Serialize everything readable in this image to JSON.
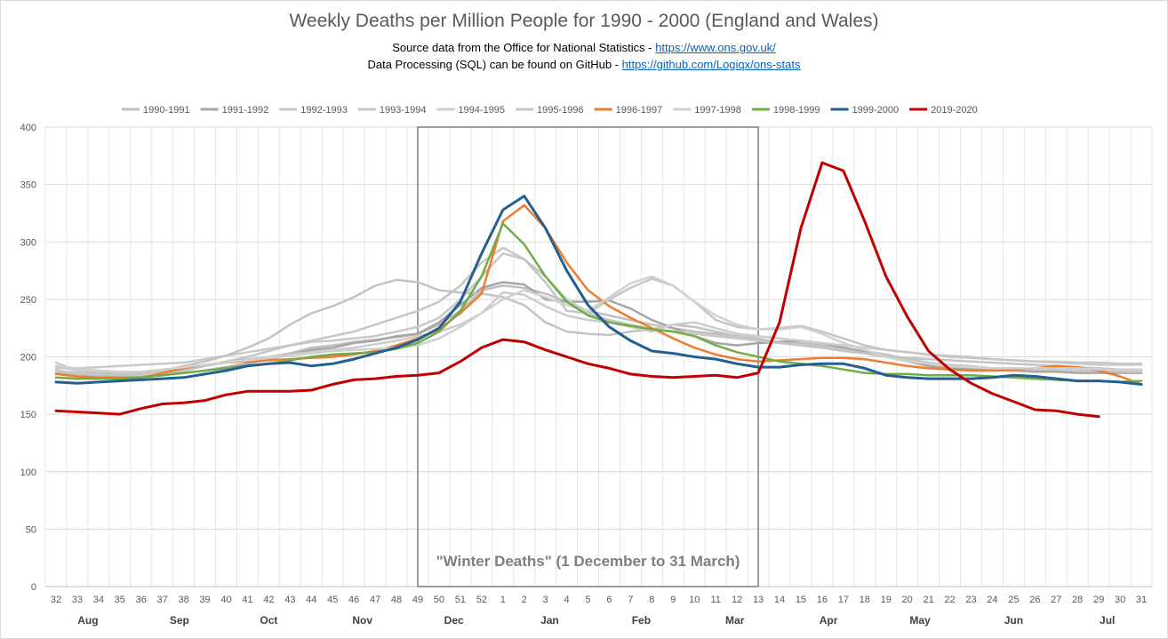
{
  "chart_data": {
    "type": "line",
    "title": "Weekly Deaths per Million People for 1990 - 2000 (England and Wales)",
    "subtitle_lines": [
      {
        "text": "Source data from the Office for National Statistics - ",
        "link": "https://www.ons.gov.uk/"
      },
      {
        "text": "Data Processing (SQL) can be found on GitHub - ",
        "link": "https://github.com/Logiqx/ons-stats"
      }
    ],
    "ylim": [
      0,
      400
    ],
    "y_ticks": [
      0,
      50,
      100,
      150,
      200,
      250,
      300,
      350,
      400
    ],
    "x": [
      32,
      33,
      34,
      35,
      36,
      37,
      38,
      39,
      40,
      41,
      42,
      43,
      44,
      45,
      46,
      47,
      48,
      49,
      50,
      51,
      52,
      1,
      2,
      3,
      4,
      5,
      6,
      7,
      8,
      9,
      10,
      11,
      12,
      13,
      14,
      15,
      16,
      17,
      18,
      19,
      20,
      21,
      22,
      23,
      24,
      25,
      26,
      27,
      28,
      29,
      30,
      31
    ],
    "months": [
      {
        "label": "Aug",
        "at": 33.5
      },
      {
        "label": "Sep",
        "at": 37.8
      },
      {
        "label": "Oct",
        "at": 42
      },
      {
        "label": "Nov",
        "at": 46.4
      },
      {
        "label": "Dec",
        "at": 50.7
      },
      {
        "label": "Jan",
        "at": 55.2
      },
      {
        "label": "Feb",
        "at": 59.5
      },
      {
        "label": "Mar",
        "at": 63.9
      },
      {
        "label": "Apr",
        "at": 68.3
      },
      {
        "label": "May",
        "at": 72.6
      },
      {
        "label": "Jun",
        "at": 77
      },
      {
        "label": "Jul",
        "at": 81.4
      }
    ],
    "winter_box": {
      "from_index": 17,
      "to_index": 33,
      "label": "\"Winter Deaths\" (1 December to 31 March)"
    },
    "legend_position": "top",
    "grid": true,
    "series": [
      {
        "name": "1990-1991",
        "color": "#c0c0c0",
        "values": [
          192,
          188,
          186,
          186,
          185,
          188,
          191,
          193,
          195,
          197,
          200,
          203,
          208,
          210,
          213,
          215,
          217,
          220,
          228,
          240,
          258,
          262,
          260,
          255,
          248,
          240,
          236,
          232,
          228,
          225,
          222,
          220,
          218,
          215,
          213,
          212,
          210,
          208,
          205,
          202,
          198,
          195,
          193,
          190,
          189,
          188,
          189,
          190,
          189,
          188,
          188,
          188
        ]
      },
      {
        "name": "1991-1992",
        "color": "#a6a6a6",
        "values": [
          186,
          184,
          183,
          182,
          182,
          184,
          186,
          188,
          191,
          194,
          198,
          202,
          206,
          208,
          212,
          214,
          218,
          220,
          230,
          245,
          260,
          265,
          263,
          250,
          248,
          248,
          249,
          242,
          232,
          225,
          218,
          212,
          210,
          212,
          213,
          214,
          212,
          208,
          204,
          200,
          196,
          192,
          190,
          189,
          188,
          188,
          187,
          187,
          186,
          186,
          186,
          186
        ]
      },
      {
        "name": "1992-1993",
        "color": "#c8c8c8",
        "values": [
          190,
          190,
          191,
          192,
          193,
          194,
          195,
          198,
          201,
          204,
          207,
          210,
          213,
          214,
          216,
          218,
          222,
          226,
          234,
          250,
          270,
          290,
          285,
          270,
          250,
          238,
          232,
          228,
          224,
          222,
          220,
          218,
          216,
          214,
          212,
          210,
          208,
          206,
          203,
          200,
          197,
          195,
          193,
          192,
          190,
          190,
          189,
          189,
          188,
          188,
          187,
          187
        ]
      },
      {
        "name": "1993-1994",
        "color": "#c3c3c3",
        "values": [
          186,
          185,
          184,
          184,
          185,
          188,
          192,
          196,
          201,
          208,
          216,
          228,
          238,
          244,
          252,
          262,
          267,
          265,
          258,
          256,
          255,
          252,
          245,
          230,
          222,
          220,
          219,
          222,
          224,
          228,
          226,
          222,
          218,
          216,
          212,
          210,
          208,
          205,
          203,
          201,
          199,
          198,
          197,
          196,
          195,
          194,
          193,
          192,
          191,
          190,
          189,
          189
        ]
      },
      {
        "name": "1994-1995",
        "color": "#cccccc",
        "values": [
          195,
          188,
          184,
          182,
          182,
          185,
          188,
          192,
          195,
          198,
          200,
          202,
          204,
          206,
          208,
          211,
          214,
          218,
          222,
          228,
          238,
          256,
          254,
          244,
          236,
          232,
          230,
          226,
          222,
          228,
          230,
          225,
          220,
          218,
          216,
          214,
          212,
          210,
          208,
          206,
          204,
          202,
          201,
          200,
          198,
          197,
          196,
          195,
          194,
          193,
          193,
          193
        ]
      },
      {
        "name": "1995-1996",
        "color": "#c6c6c6",
        "values": [
          188,
          186,
          184,
          183,
          183,
          185,
          188,
          192,
          196,
          200,
          205,
          210,
          214,
          218,
          222,
          228,
          234,
          240,
          248,
          262,
          282,
          295,
          285,
          265,
          240,
          238,
          250,
          260,
          268,
          262,
          248,
          232,
          226,
          224,
          225,
          227,
          222,
          216,
          210,
          206,
          204,
          202,
          200,
          199,
          198,
          197,
          196,
          196,
          195,
          195,
          194,
          194
        ]
      },
      {
        "name": "1996-1997",
        "color": "#ed7d31",
        "values": [
          185,
          183,
          182,
          182,
          182,
          186,
          190,
          193,
          195,
          196,
          197,
          198,
          199,
          200,
          202,
          205,
          210,
          216,
          224,
          238,
          255,
          318,
          332,
          312,
          282,
          258,
          244,
          234,
          225,
          216,
          208,
          202,
          198,
          196,
          197,
          198,
          199,
          199,
          198,
          195,
          192,
          190,
          189,
          188,
          188,
          189,
          190,
          192,
          191,
          188,
          183,
          176
        ]
      },
      {
        "name": "1997-1998",
        "color": "#d0d0d0",
        "values": [
          192,
          190,
          188,
          187,
          187,
          189,
          191,
          193,
          195,
          197,
          199,
          201,
          203,
          205,
          206,
          207,
          208,
          210,
          216,
          226,
          238,
          250,
          258,
          252,
          245,
          240,
          252,
          264,
          270,
          262,
          248,
          236,
          228,
          224,
          224,
          226,
          220,
          212,
          206,
          200,
          196,
          194,
          192,
          191,
          190,
          190,
          190,
          190,
          190,
          189,
          189,
          189
        ]
      },
      {
        "name": "1998-1999",
        "color": "#70ad47",
        "values": [
          182,
          181,
          181,
          181,
          182,
          184,
          186,
          188,
          190,
          192,
          194,
          197,
          200,
          202,
          203,
          204,
          207,
          212,
          222,
          240,
          270,
          316,
          298,
          270,
          248,
          236,
          230,
          227,
          224,
          222,
          218,
          210,
          204,
          200,
          196,
          194,
          192,
          189,
          186,
          185,
          185,
          184,
          184,
          184,
          183,
          182,
          181,
          180,
          179,
          179,
          178,
          179
        ]
      },
      {
        "name": "1999-2000",
        "color": "#255e91",
        "values": [
          178,
          177,
          178,
          179,
          180,
          181,
          182,
          185,
          188,
          192,
          194,
          195,
          192,
          194,
          198,
          203,
          208,
          215,
          225,
          248,
          290,
          328,
          340,
          312,
          275,
          245,
          226,
          214,
          205,
          203,
          200,
          198,
          194,
          191,
          191,
          193,
          194,
          194,
          190,
          184,
          182,
          181,
          181,
          181,
          182,
          184,
          183,
          181,
          179,
          179,
          178,
          176
        ]
      },
      {
        "name": "2019-2020",
        "color": "#c00000",
        "values": [
          153,
          152,
          151,
          150,
          155,
          159,
          160,
          162,
          167,
          170,
          170,
          170,
          171,
          176,
          180,
          181,
          183,
          184,
          186,
          196,
          208,
          215,
          213,
          206,
          200,
          194,
          190,
          185,
          183,
          182,
          183,
          184,
          182,
          186,
          230,
          312,
          369,
          362,
          318,
          270,
          235,
          205,
          189,
          177,
          168,
          161,
          154,
          153,
          150,
          148,
          null,
          null
        ]
      }
    ]
  }
}
